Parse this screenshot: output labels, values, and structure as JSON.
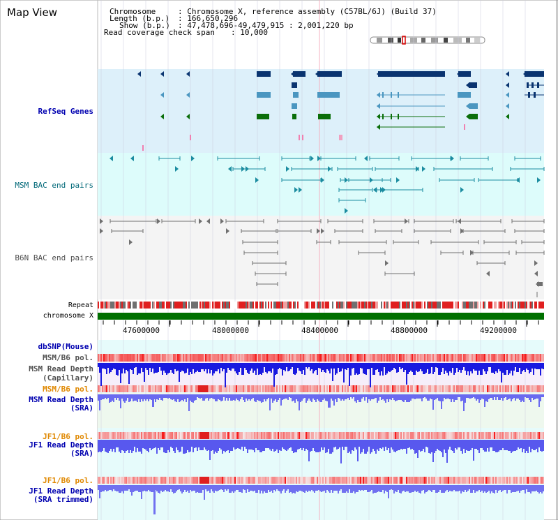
{
  "title": "Map View",
  "info": {
    "chromosome_label": "Chromosome",
    "chromosome_value": ": Chromosome X, reference assembly (C57BL/6J) (Build 37)",
    "length_label": "Length (b.p.)",
    "length_value": ": 166,650,296",
    "show_label": "Show (b.p.)",
    "show_value": ": 47,478,696-49,479,915 : 2,001,220 bp",
    "coverage_label": "Read coverage check span",
    "coverage_value": ": 10,000"
  },
  "tracks": {
    "refseq": "RefSeq Genes",
    "msm_bac": "MSM BAC end pairs",
    "b6n_bac": "B6N BAC end pairs",
    "repeat": "Repeat",
    "chromosome": "chromosome X",
    "dbsnp": "dbSNP(Mouse)",
    "msm_b6_pol_1": "MSM/B6 pol.",
    "msm_depth_cap_1": "MSM Read Depth",
    "msm_depth_cap_2": "(Capillary)",
    "msm_b6_pol_2": "MSM/B6 pol.",
    "msm_depth_sra_1": "MSM Read Depth",
    "msm_depth_sra_2": "(SRA)",
    "jf1_pol_1": "JF1/B6 pol.",
    "jf1_depth_1": "JF1 Read Depth",
    "jf1_depth_2": "(SRA)",
    "jf1_pol_2": "JF1/B6 pol.",
    "jf1_trim_1": "JF1 Read Depth",
    "jf1_trim_2": "(SRA trimmed)"
  },
  "axis": {
    "ticks": [
      "47600000",
      "48000000",
      "48400000",
      "48800000",
      "49200000"
    ]
  },
  "colors": {
    "refseq_bg": "#ddf0fa",
    "msm_bg": "#ddfcfb",
    "b6n_bg": "#f4f4f4",
    "gene_navy": "#0a3470",
    "gene_steel": "#4a96c0",
    "gene_green": "#0a6e0a",
    "bac_teal": "#1b8ca0",
    "bac_gray": "#707070",
    "label_blue": "#0000b0",
    "label_teal": "#006878",
    "label_orange": "#e08800",
    "label_gray": "#505050",
    "chrom_green": "#007000",
    "depth_blue": "#2020e0"
  }
}
